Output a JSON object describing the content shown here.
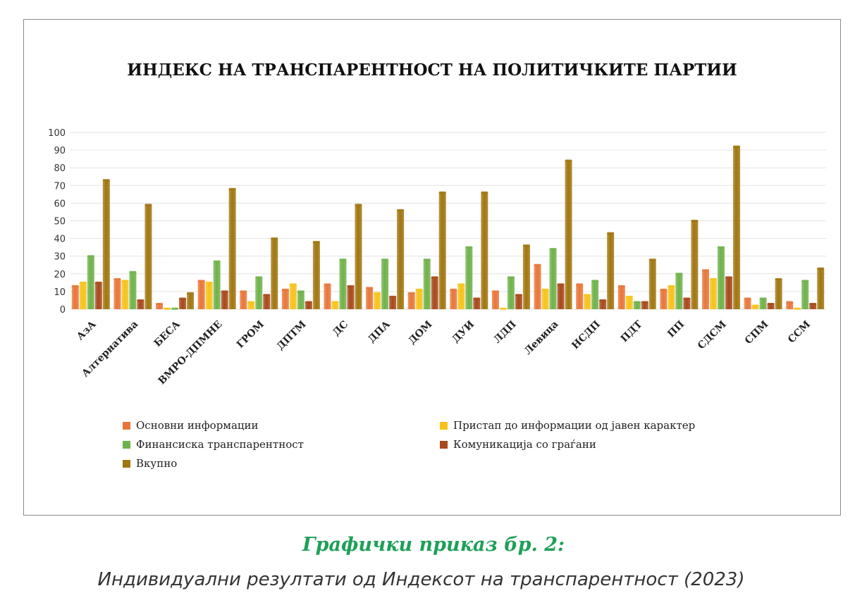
{
  "chart_data": {
    "type": "bar",
    "title": "ИНДЕКС НА ТРАНСПАРЕНТНОСТ НА ПОЛИТИЧКИТЕ ПАРТИИ",
    "xlabel": "",
    "ylabel": "",
    "ylim": [
      0,
      100
    ],
    "yticks": [
      0,
      10,
      20,
      30,
      40,
      50,
      60,
      70,
      80,
      90,
      100
    ],
    "grid": true,
    "legend_position": "bottom",
    "categories": [
      "АзА",
      "Алтернатива",
      "БЕСА",
      "ВМРО-ДПМНЕ",
      "ГРОМ",
      "ДПТМ",
      "ДС",
      "ДПА",
      "ДОМ",
      "ДУИ",
      "ЛДП",
      "Левица",
      "НСДП",
      "ПДТ",
      "ПП",
      "СДСМ",
      "СПМ",
      "ССМ"
    ],
    "series": [
      {
        "name": "Основни информации",
        "color": "#e8763a",
        "values": [
          13,
          17,
          3,
          16,
          10,
          11,
          14,
          12,
          9,
          11,
          10,
          25,
          14,
          13,
          11,
          22,
          6,
          4
        ]
      },
      {
        "name": "Пристап до информации од јавен карактер",
        "color": "#f7c21a",
        "values": [
          15,
          16,
          0,
          15,
          4,
          14,
          4,
          9,
          11,
          14,
          0,
          11,
          8,
          7,
          13,
          17,
          2,
          0
        ]
      },
      {
        "name": "Финансиска транспарентност",
        "color": "#6fb24a",
        "values": [
          30,
          21,
          0,
          27,
          18,
          10,
          28,
          28,
          28,
          35,
          18,
          34,
          16,
          4,
          20,
          35,
          6,
          16
        ]
      },
      {
        "name": "Комуникација со граѓани",
        "color": "#a8481c",
        "values": [
          15,
          5,
          6,
          10,
          8,
          4,
          13,
          7,
          18,
          6,
          8,
          14,
          5,
          4,
          6,
          18,
          3,
          3
        ]
      },
      {
        "name": "Вкупно",
        "color": "#a0760f",
        "values": [
          73,
          59,
          9,
          68,
          40,
          38,
          59,
          56,
          66,
          66,
          36,
          84,
          43,
          28,
          50,
          92,
          17,
          23
        ]
      }
    ]
  },
  "caption": {
    "title": "Графички приказ бр. 2:",
    "subtitle": "Индивидуални резултати од Индексот на транспарентност (2023)"
  }
}
